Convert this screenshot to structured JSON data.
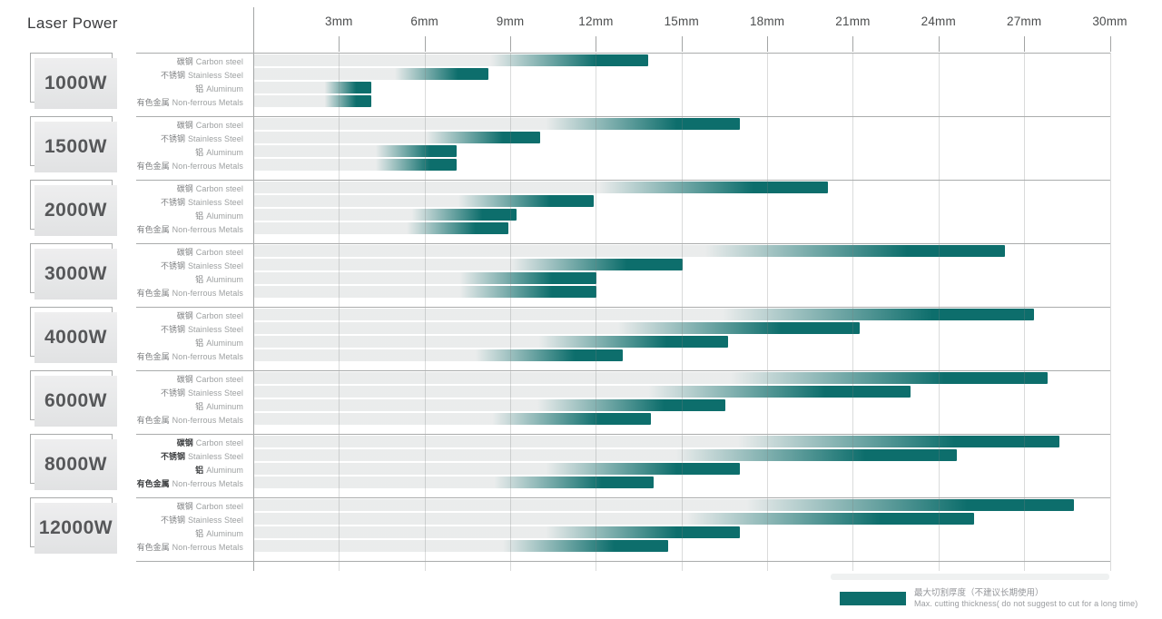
{
  "header": {
    "title": "Laser Power"
  },
  "chart_data": {
    "type": "bar",
    "orientation": "horizontal",
    "title": "Laser Power",
    "unit": "mm",
    "xlim": [
      0,
      30
    ],
    "grid": true,
    "x_ticks": [
      "3mm",
      "6mm",
      "9mm",
      "12mm",
      "15mm",
      "18mm",
      "21mm",
      "24mm",
      "27mm",
      "30mm"
    ],
    "x_tick_mm": [
      3,
      6,
      9,
      12,
      15,
      18,
      21,
      24,
      27,
      30
    ],
    "materials": [
      {
        "cn": "碳钢",
        "en": "Carbon steel"
      },
      {
        "cn": "不锈钢",
        "en": "Stainless Steel"
      },
      {
        "cn": "铝",
        "en": "Aluminum"
      },
      {
        "cn": "有色金属",
        "en": "Non-ferrous Metals"
      }
    ],
    "groups": [
      {
        "power": "1000W",
        "values_mm": [
          13.8,
          8.2,
          4.1,
          4.1
        ],
        "bold_cn_labels": false
      },
      {
        "power": "1500W",
        "values_mm": [
          17.0,
          10.0,
          7.1,
          7.1
        ],
        "bold_cn_labels": false
      },
      {
        "power": "2000W",
        "values_mm": [
          20.1,
          11.9,
          9.2,
          8.9
        ],
        "bold_cn_labels": false
      },
      {
        "power": "3000W",
        "values_mm": [
          26.3,
          15.0,
          12.0,
          12.0
        ],
        "bold_cn_labels": false
      },
      {
        "power": "4000W",
        "values_mm": [
          27.3,
          21.2,
          16.6,
          12.9
        ],
        "bold_cn_labels": false
      },
      {
        "power": "6000W",
        "values_mm": [
          27.8,
          23.0,
          16.5,
          13.9
        ],
        "bold_cn_labels": false
      },
      {
        "power": "8000W",
        "values_mm": [
          28.2,
          24.6,
          17.0,
          14.0
        ],
        "bold_cn_labels": true
      },
      {
        "power": "12000W",
        "values_mm": [
          28.7,
          25.2,
          17.0,
          14.5
        ],
        "bold_cn_labels": false
      }
    ]
  },
  "legend": {
    "label_cn": "最大切割厚度（不建议长期使用）",
    "label_en": "Max. cutting thickness( do not suggest to cut for a long time)"
  },
  "colors": {
    "bar_teal": "#0d6e6c",
    "bar_track": "#e9ebeb",
    "gridline": "#cbcdcd",
    "axis_line": "#a3a5a5"
  }
}
